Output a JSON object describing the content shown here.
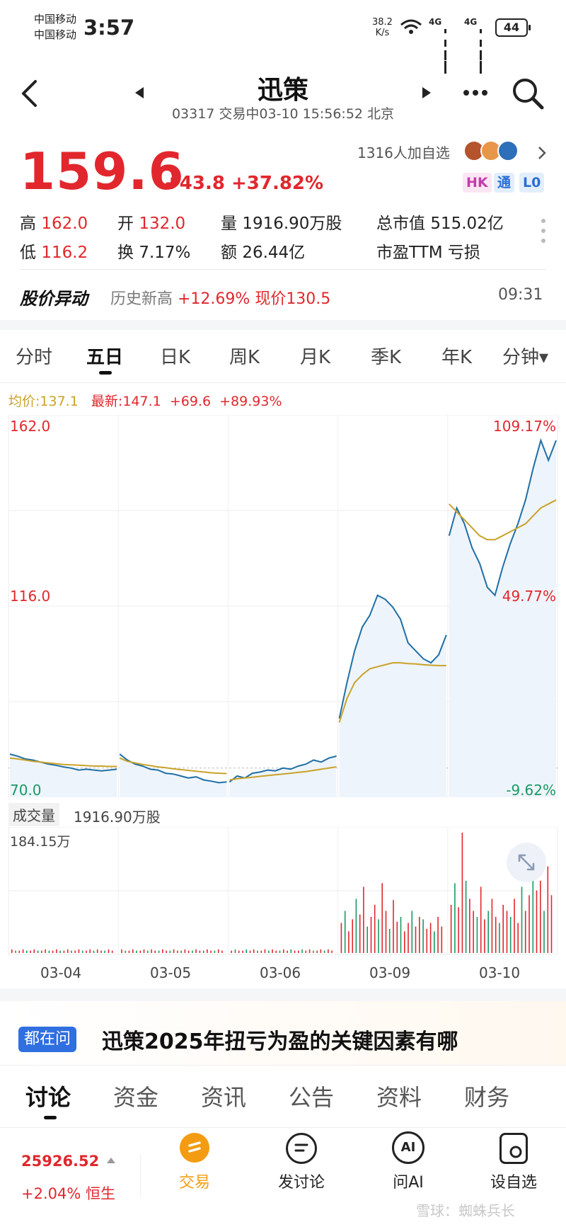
{
  "status_bar": {
    "carrier1": "中国移动",
    "carrier2": "中国移动",
    "time": "3:57",
    "net_speed_value": "38.2",
    "net_speed_unit": "K/s",
    "sig1": "4G",
    "sig2": "4G",
    "battery": "44"
  },
  "header": {
    "title": "迅策",
    "subtitle": "03317 交易中03-10 15:56:52 北京"
  },
  "quote": {
    "price": "159.6",
    "change": "+43.8 +37.82%",
    "followers": "1316人加自选",
    "tags": [
      "HK",
      "通",
      "L0"
    ]
  },
  "stats": {
    "high_label": "高",
    "high_value": "162.0",
    "open_label": "开",
    "open_value": "132.0",
    "volume_label": "量",
    "volume_value": "1916.90万股",
    "mcap_label": "总市值",
    "mcap_value": "515.02亿",
    "low_label": "低",
    "low_value": "116.2",
    "turnover_label": "换",
    "turnover_value": "7.17%",
    "amount_label": "额",
    "amount_value": "26.44亿",
    "pe_label": "市盈TTM",
    "pe_value": "亏损"
  },
  "alert": {
    "label": "股价异动",
    "text_prefix": "历史新高 ",
    "text_highlight": "+12.69% 现价130.5",
    "time": "09:31"
  },
  "chart_tabs": [
    "分时",
    "五日",
    "日K",
    "周K",
    "月K",
    "季K",
    "年K",
    "分钟▾"
  ],
  "legend": {
    "avg_label": "均价:137.1",
    "latest_label": "最新:147.1",
    "latest_change": "+69.6",
    "latest_pct": "+89.93%"
  },
  "chart_data": {
    "type": "line",
    "x": [
      "03-04",
      "03-05",
      "03-06",
      "03-09",
      "03-10"
    ],
    "ylim": [
      70.0,
      162.0
    ],
    "y_labels_left": [
      "162.0",
      "116.0",
      "70.0"
    ],
    "y_labels_right": [
      "109.17%",
      "49.77%",
      "-9.62%"
    ],
    "series": [
      {
        "name": "最新",
        "color": "#1f6fa6",
        "days": [
          [
            78.0,
            77.5,
            76.8,
            76.5,
            76.0,
            75.5,
            75.2,
            74.8,
            74.5,
            74.0,
            74.2,
            74.0,
            73.8,
            74.0,
            74.2
          ],
          [
            78.0,
            76.5,
            75.5,
            75.0,
            74.2,
            74.0,
            73.2,
            73.0,
            72.5,
            72.0,
            72.3,
            71.5,
            71.2,
            70.8,
            71.0
          ],
          [
            71.0,
            72.5,
            72.0,
            73.2,
            73.5,
            74.0,
            73.8,
            74.5,
            74.2,
            75.0,
            75.5,
            76.5,
            76.0,
            77.0,
            77.5
          ],
          [
            87.0,
            96.0,
            104.0,
            110.0,
            113.0,
            118.0,
            117.0,
            115.0,
            112.0,
            106.0,
            104.0,
            102.0,
            101.0,
            103.0,
            108.0
          ],
          [
            133.0,
            140.0,
            136.0,
            130.0,
            126.0,
            120.0,
            118.0,
            125.0,
            131.0,
            136.0,
            142.0,
            150.0,
            157.0,
            152.0,
            157.0
          ]
        ]
      },
      {
        "name": "均价",
        "color": "#c9a22a",
        "days": [
          [
            77.0,
            76.8,
            76.5,
            76.2,
            76.0,
            75.8,
            75.6,
            75.4,
            75.3,
            75.2,
            75.1,
            75.0,
            75.0,
            74.9,
            74.9
          ],
          [
            77.0,
            76.2,
            75.8,
            75.4,
            75.1,
            74.8,
            74.6,
            74.3,
            74.1,
            73.9,
            73.7,
            73.5,
            73.3,
            73.2,
            73.1
          ],
          [
            71.5,
            71.8,
            72.0,
            72.2,
            72.4,
            72.6,
            72.8,
            73.0,
            73.2,
            73.4,
            73.6,
            73.9,
            74.2,
            74.5,
            74.8
          ],
          [
            86.0,
            92.0,
            96.0,
            98.0,
            99.5,
            100.0,
            100.5,
            101.0,
            101.0,
            100.8,
            100.7,
            100.5,
            100.4,
            100.3,
            100.3
          ],
          [
            141.0,
            139.0,
            137.0,
            135.0,
            133.0,
            132.0,
            132.0,
            133.0,
            134.0,
            135.0,
            136.0,
            138.0,
            140.0,
            141.0,
            142.0
          ]
        ]
      }
    ]
  },
  "volume": {
    "label": "成交量",
    "value": "1916.90万股",
    "max_label": "184.15万",
    "bars": [
      [
        3,
        2,
        2,
        3,
        2,
        2,
        3,
        2,
        2,
        3,
        2,
        2,
        3,
        2,
        2,
        3,
        2,
        2,
        3,
        2,
        2,
        3,
        2,
        3,
        2,
        2,
        3,
        2
      ],
      [
        3,
        2,
        2,
        3,
        2,
        2,
        3,
        2,
        3,
        2,
        2,
        3,
        2,
        2,
        3,
        2,
        2,
        3,
        2,
        2,
        3,
        2,
        2,
        3,
        2,
        2,
        3,
        2
      ],
      [
        2,
        3,
        2,
        2,
        3,
        2,
        3,
        2,
        2,
        3,
        2,
        3,
        2,
        2,
        3,
        2,
        3,
        2,
        2,
        3,
        2,
        3,
        2,
        2,
        3,
        2,
        3,
        2
      ],
      [
        25,
        35,
        18,
        28,
        45,
        32,
        55,
        22,
        30,
        40,
        28,
        58,
        35,
        20,
        44,
        26,
        30,
        18,
        25,
        35,
        22,
        30,
        28,
        20,
        25,
        18,
        30,
        22
      ],
      [
        40,
        58,
        38,
        100,
        60,
        45,
        35,
        30,
        55,
        28,
        35,
        45,
        30,
        25,
        40,
        35,
        30,
        45,
        25,
        55,
        35,
        48,
        70,
        52,
        60,
        35,
        72,
        48
      ]
    ]
  },
  "banner": {
    "badge": "都在问",
    "question": "迅策2025年扭亏为盈的关键因素有哪"
  },
  "bottom_tabs": [
    "讨论",
    "资金",
    "资讯",
    "公告",
    "资料",
    "财务"
  ],
  "index": {
    "value": "25926.52",
    "change": "+2.04% 恒生"
  },
  "nav": {
    "trade": "交易",
    "post": "发讨论",
    "ask_ai": "问AI",
    "watchlist": "设自选"
  },
  "watermark": "雪球：蜘蛛兵长",
  "colors": {
    "up": "#e1272d",
    "down": "#1a9a63",
    "price_line": "#1f6fa6",
    "avg_line": "#c9a22a",
    "trade_accent": "#f39c12"
  }
}
